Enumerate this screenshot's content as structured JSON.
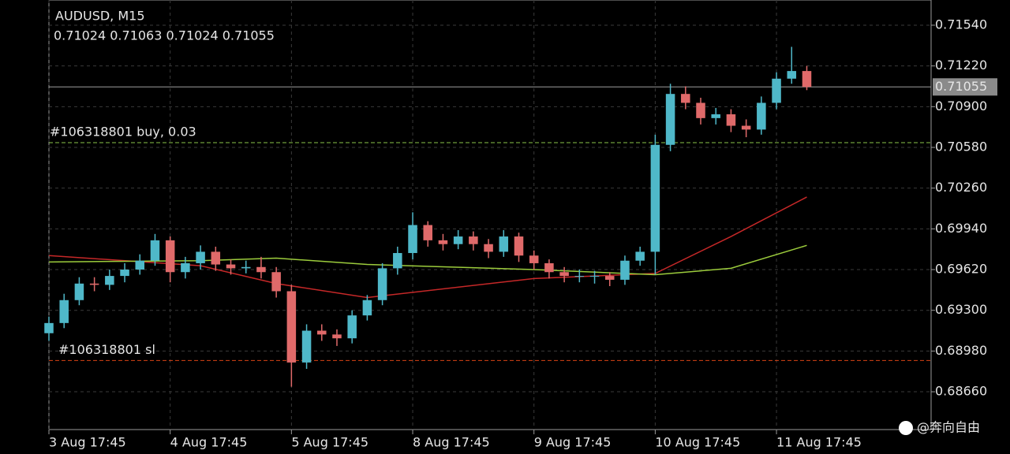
{
  "chart_data": {
    "type": "candlestick",
    "title": "AUDUSD, M15",
    "info": "0.71024 0.71063 0.71024 0.71055",
    "watermark": "@奔向自由",
    "up_color": "#4fb8c9",
    "down_color": "#e06a6a",
    "grid": true,
    "xlim": [
      0,
      58.2
    ],
    "ylim": [
      0.68363,
      0.71738
    ],
    "xticks": [
      {
        "value": 0,
        "label": "3 Aug 17:45"
      },
      {
        "value": 8,
        "label": "4 Aug 17:45"
      },
      {
        "value": 16,
        "label": "5 Aug 17:45"
      },
      {
        "value": 24,
        "label": "8 Aug 17:45"
      },
      {
        "value": 32,
        "label": "9 Aug 17:45"
      },
      {
        "value": 40,
        "label": "10 Aug 17:45"
      },
      {
        "value": 48,
        "label": "11 Aug 17:45"
      }
    ],
    "yticks": [
      {
        "value": 0.7154,
        "label": "0.71540"
      },
      {
        "value": 0.7122,
        "label": "0.71220"
      },
      {
        "value": 0.709,
        "label": "0.70900"
      },
      {
        "value": 0.7058,
        "label": "0.70580"
      },
      {
        "value": 0.7026,
        "label": "0.70260"
      },
      {
        "value": 0.6994,
        "label": "0.69940"
      },
      {
        "value": 0.6962,
        "label": "0.69620"
      },
      {
        "value": 0.693,
        "label": "0.69300"
      },
      {
        "value": 0.6898,
        "label": "0.68980"
      },
      {
        "value": 0.6866,
        "label": "0.68660"
      }
    ],
    "open": [
      0.6912,
      0.692,
      0.6938,
      0.6951,
      0.695,
      0.6957,
      0.6962,
      0.6969,
      0.6985,
      0.696,
      0.6967,
      0.6976,
      0.6966,
      0.6963,
      0.6964,
      0.696,
      0.6945,
      0.6889,
      0.6914,
      0.6911,
      0.6908,
      0.6926,
      0.6938,
      0.6963,
      0.6975,
      0.6997,
      0.6985,
      0.6982,
      0.6988,
      0.6982,
      0.6976,
      0.6988,
      0.6973,
      0.6967,
      0.696,
      0.6957,
      0.6957,
      0.6957,
      0.6954,
      0.6969,
      0.6976,
      0.706,
      0.71,
      0.7093,
      0.7081,
      0.7084,
      0.7075,
      0.7072,
      0.7093,
      0.7112,
      0.7118
    ],
    "high": [
      0.6925,
      0.6943,
      0.6956,
      0.6956,
      0.6962,
      0.6967,
      0.6974,
      0.699,
      0.6988,
      0.6972,
      0.6981,
      0.698,
      0.697,
      0.6969,
      0.6972,
      0.6964,
      0.695,
      0.6919,
      0.6919,
      0.6915,
      0.693,
      0.6942,
      0.6967,
      0.698,
      0.7007,
      0.7,
      0.699,
      0.6993,
      0.6992,
      0.6986,
      0.6993,
      0.6991,
      0.6977,
      0.697,
      0.6964,
      0.6962,
      0.6961,
      0.696,
      0.6973,
      0.698,
      0.7068,
      0.7108,
      0.7106,
      0.7097,
      0.7089,
      0.7088,
      0.708,
      0.7098,
      0.7117,
      0.7137,
      0.7122
    ],
    "low": [
      0.6906,
      0.6916,
      0.6934,
      0.6945,
      0.6946,
      0.6952,
      0.6958,
      0.6965,
      0.6952,
      0.6955,
      0.6962,
      0.6961,
      0.6958,
      0.6959,
      0.6955,
      0.694,
      0.687,
      0.6884,
      0.6906,
      0.6902,
      0.6904,
      0.6922,
      0.6934,
      0.6958,
      0.697,
      0.698,
      0.6977,
      0.6978,
      0.6977,
      0.6971,
      0.6972,
      0.6968,
      0.6962,
      0.6955,
      0.6952,
      0.6952,
      0.6951,
      0.6949,
      0.695,
      0.6965,
      0.6958,
      0.7055,
      0.7088,
      0.7076,
      0.7076,
      0.707,
      0.7066,
      0.7068,
      0.7088,
      0.7108,
      0.7103
    ],
    "close": [
      0.692,
      0.6938,
      0.6951,
      0.695,
      0.6957,
      0.6962,
      0.6969,
      0.6985,
      0.696,
      0.6967,
      0.6976,
      0.6966,
      0.6963,
      0.6964,
      0.696,
      0.6945,
      0.6889,
      0.6914,
      0.6911,
      0.6908,
      0.6926,
      0.6938,
      0.6963,
      0.6975,
      0.6997,
      0.6985,
      0.6982,
      0.6988,
      0.6982,
      0.6976,
      0.6988,
      0.6973,
      0.6967,
      0.696,
      0.6957,
      0.6957,
      0.6957,
      0.6954,
      0.6969,
      0.6976,
      0.706,
      0.71,
      0.7093,
      0.7081,
      0.7084,
      0.7075,
      0.7072,
      0.7093,
      0.7112,
      0.7118,
      0.71055
    ],
    "series": [
      {
        "color": "#c62828",
        "x": [
          0,
          10,
          15,
          21,
          32,
          40,
          45,
          50
        ],
        "values": [
          0.6973,
          0.6965,
          0.6951,
          0.694,
          0.6955,
          0.6959,
          0.6988,
          0.7019
        ]
      },
      {
        "color": "#9ccc3c",
        "x": [
          0,
          10,
          15,
          21,
          32,
          40,
          45,
          50
        ],
        "values": [
          0.6968,
          0.6969,
          0.6971,
          0.6966,
          0.6962,
          0.6958,
          0.6963,
          0.6981
        ]
      }
    ],
    "levels": [
      {
        "value": 0.71055,
        "color": "#9e9e9e",
        "dash": false
      },
      {
        "value": 0.70617,
        "color": "#8bc34a",
        "dash": true,
        "label": "#106318801 buy, 0.03"
      },
      {
        "value": 0.68906,
        "color": "#d84315",
        "dash": true,
        "label": "#106318801 sl"
      }
    ],
    "current_price": 0.71055
  }
}
